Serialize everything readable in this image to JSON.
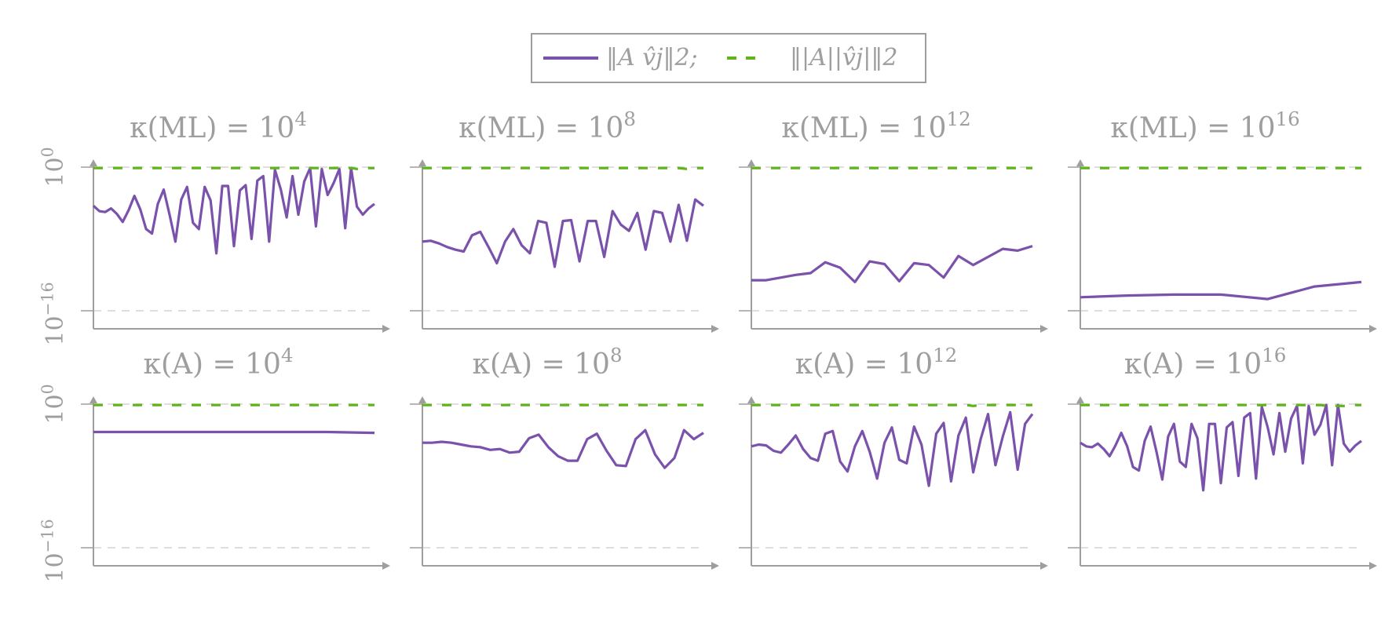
{
  "legend": {
    "items": [
      {
        "label": "‖A v̂j‖2;",
        "color": "#7b52ab",
        "style": "solid"
      },
      {
        "label": "‖|A||v̂j|‖2",
        "color": "#5fb31b",
        "style": "dashed"
      }
    ]
  },
  "y_ticks": {
    "top": "10",
    "top_exp": "0",
    "bottom": "10",
    "bottom_exp": "−16"
  },
  "colors": {
    "axis": "#9e9e9e",
    "grid": "#d4d4d4",
    "series_solid": "#7b52ab",
    "series_dashed": "#5fb31b"
  },
  "chart_data": [
    {
      "type": "line",
      "title_base": "κ(ML) = 10",
      "title_exp": "4",
      "log_scale": true,
      "ylim": [
        -18,
        0.2
      ],
      "grid_lines": [
        0,
        -16
      ],
      "series": [
        {
          "values": [
            -4.3,
            -4.9,
            -5.0,
            -4.6,
            -5.2,
            -6.1,
            -4.8,
            -3.2,
            -4.7,
            -6.9,
            -7.4,
            -4.1,
            -2.5,
            -5.3,
            -8.3,
            -3.6,
            -2.2,
            -6.2,
            -6.9,
            -2.2,
            -3.7,
            -9.6,
            -2.1,
            -2.1,
            -8.8,
            -2.6,
            -2.0,
            -8.0,
            -1.5,
            -1.0,
            -8.3,
            -0.3,
            -2.5,
            -5.6,
            -1.0,
            -5.3,
            -1.6,
            -0.1,
            -6.6,
            -0.2,
            -3.1,
            -1.8,
            -0.2,
            -6.8,
            -0.1,
            -4.4,
            -5.3,
            -4.6,
            -4.1
          ]
        },
        {
          "values": [
            -0.1,
            -0.1,
            -0.1,
            -0.1,
            -0.1,
            -0.1,
            -0.1,
            -0.1,
            -0.1,
            -0.1,
            -0.1,
            -0.1,
            -0.1,
            -0.1,
            -0.1,
            -0.1,
            -0.1,
            -0.1,
            -0.1,
            -0.1,
            -0.1,
            -0.1,
            -0.1,
            -0.1,
            -0.1,
            -0.1,
            -0.1,
            -0.1,
            -0.1,
            -0.1,
            -0.1,
            -0.1,
            -0.1,
            -0.1,
            -0.1,
            -0.1,
            -0.1,
            -0.1,
            -0.1,
            -0.1,
            -0.1,
            -0.1,
            -0.1,
            -0.1,
            -0.1,
            -0.2,
            -0.1,
            -0.1,
            -0.1
          ]
        }
      ]
    },
    {
      "type": "line",
      "title_base": "κ(ML) = 10",
      "title_exp": "8",
      "log_scale": true,
      "ylim": [
        -18,
        0.2
      ],
      "grid_lines": [
        0,
        -16
      ],
      "series": [
        {
          "values": [
            -8.3,
            -8.2,
            -8.5,
            -8.9,
            -9.2,
            -9.4,
            -7.6,
            -7.2,
            -8.9,
            -10.7,
            -8.3,
            -6.9,
            -8.7,
            -9.6,
            -6.0,
            -6.2,
            -11.1,
            -6.0,
            -5.9,
            -10.5,
            -6.0,
            -6.0,
            -10.0,
            -4.9,
            -6.4,
            -7.1,
            -5.1,
            -9.2,
            -4.9,
            -5.1,
            -8.3,
            -4.2,
            -8.2,
            -3.6,
            -4.3
          ]
        },
        {
          "values": [
            -0.1,
            -0.1,
            -0.1,
            -0.1,
            -0.1,
            -0.1,
            -0.1,
            -0.1,
            -0.1,
            -0.1,
            -0.1,
            -0.1,
            -0.1,
            -0.1,
            -0.1,
            -0.1,
            -0.1,
            -0.1,
            -0.1,
            -0.1,
            -0.1,
            -0.1,
            -0.1,
            -0.1,
            -0.1,
            -0.1,
            -0.1,
            -0.1,
            -0.1,
            -0.1,
            -0.1,
            -0.1,
            -0.2,
            -0.1,
            -0.1
          ]
        }
      ]
    },
    {
      "type": "line",
      "title_base": "κ(ML) = 10",
      "title_exp": "12",
      "log_scale": true,
      "ylim": [
        -18,
        0.2
      ],
      "grid_lines": [
        0,
        -16
      ],
      "series": [
        {
          "values": [
            -12.6,
            -12.6,
            -12.3,
            -12.0,
            -11.8,
            -10.6,
            -11.2,
            -12.8,
            -10.5,
            -10.8,
            -12.7,
            -10.7,
            -10.9,
            -12.3,
            -9.9,
            -10.9,
            -10.0,
            -9.1,
            -9.3,
            -8.8
          ]
        },
        {
          "values": [
            -0.1,
            -0.1,
            -0.1,
            -0.1,
            -0.1,
            -0.1,
            -0.1,
            -0.1,
            -0.1,
            -0.1,
            -0.1,
            -0.1,
            -0.1,
            -0.1,
            -0.1,
            -0.1,
            -0.1,
            -0.1,
            -0.1,
            -0.1
          ]
        }
      ]
    },
    {
      "type": "line",
      "title_base": "κ(ML) = 10",
      "title_exp": "16",
      "log_scale": true,
      "ylim": [
        -18,
        0.2
      ],
      "grid_lines": [
        0,
        -16
      ],
      "series": [
        {
          "values": [
            -14.5,
            -14.3,
            -14.2,
            -14.2,
            -14.7,
            -13.3,
            -12.8
          ]
        },
        {
          "values": [
            -0.1,
            -0.1,
            -0.1,
            -0.1,
            -0.1,
            -0.1,
            -0.1
          ]
        }
      ]
    },
    {
      "type": "line",
      "title_base": "κ(A) = 10",
      "title_exp": "4",
      "log_scale": true,
      "ylim": [
        -18,
        0.2
      ],
      "grid_lines": [
        0,
        -16
      ],
      "series": [
        {
          "values": [
            -3.1,
            -3.1,
            -3.1,
            -3.1,
            -3.1,
            -3.1,
            -3.2
          ]
        },
        {
          "values": [
            -0.1,
            -0.1,
            -0.1,
            -0.1,
            -0.1,
            -0.1,
            -0.1
          ]
        }
      ]
    },
    {
      "type": "line",
      "title_base": "κ(A) = 10",
      "title_exp": "8",
      "log_scale": true,
      "ylim": [
        -18,
        0.2
      ],
      "grid_lines": [
        0,
        -16
      ],
      "series": [
        {
          "values": [
            -4.3,
            -4.3,
            -4.2,
            -4.3,
            -4.5,
            -4.7,
            -4.8,
            -5.1,
            -5.0,
            -5.4,
            -5.3,
            -3.8,
            -3.4,
            -4.8,
            -5.8,
            -6.3,
            -6.3,
            -3.9,
            -3.3,
            -5.2,
            -6.8,
            -6.9,
            -3.9,
            -2.9,
            -5.6,
            -7.1,
            -6.0,
            -2.9,
            -3.9,
            -3.2
          ]
        },
        {
          "values": [
            -0.1,
            -0.1,
            -0.1,
            -0.1,
            -0.1,
            -0.1,
            -0.1,
            -0.1,
            -0.1,
            -0.1,
            -0.1,
            -0.1,
            -0.1,
            -0.1,
            -0.1,
            -0.1,
            -0.1,
            -0.1,
            -0.1,
            -0.1,
            -0.1,
            -0.1,
            -0.1,
            -0.1,
            -0.1,
            -0.1,
            -0.1,
            -0.1,
            -0.1,
            -0.1
          ]
        }
      ]
    },
    {
      "type": "line",
      "title_base": "κ(A) = 10",
      "title_exp": "12",
      "log_scale": true,
      "ylim": [
        -18,
        0.2
      ],
      "grid_lines": [
        0,
        -16
      ],
      "series": [
        {
          "values": [
            -4.7,
            -4.5,
            -4.6,
            -5.2,
            -5.4,
            -4.5,
            -3.5,
            -5.0,
            -6.0,
            -6.3,
            -3.3,
            -3.0,
            -6.4,
            -7.5,
            -4.7,
            -3.0,
            -5.3,
            -8.3,
            -4.3,
            -2.6,
            -6.2,
            -6.6,
            -2.5,
            -4.5,
            -9.1,
            -3.3,
            -2.1,
            -8.6,
            -3.5,
            -1.5,
            -7.6,
            -3.9,
            -1.1,
            -6.8,
            -3.6,
            -0.9,
            -7.3,
            -2.2,
            -1.1
          ]
        },
        {
          "values": [
            -0.1,
            -0.1,
            -0.1,
            -0.1,
            -0.1,
            -0.1,
            -0.1,
            -0.1,
            -0.1,
            -0.1,
            -0.1,
            -0.1,
            -0.1,
            -0.1,
            -0.1,
            -0.1,
            -0.1,
            -0.1,
            -0.1,
            -0.1,
            -0.1,
            -0.1,
            -0.1,
            -0.1,
            -0.1,
            -0.1,
            -0.1,
            -0.1,
            -0.1,
            -0.1,
            -0.2,
            -0.1,
            -0.1,
            -0.1,
            -0.1,
            -0.1,
            -0.1,
            -0.1,
            -0.1
          ]
        }
      ]
    },
    {
      "type": "line",
      "title_base": "κ(A) = 10",
      "title_exp": "16",
      "log_scale": true,
      "ylim": [
        -18,
        0.2
      ],
      "grid_lines": [
        0,
        -16
      ],
      "series": [
        {
          "values": [
            -4.3,
            -4.7,
            -4.8,
            -4.4,
            -5.0,
            -5.8,
            -4.6,
            -3.2,
            -4.7,
            -7.0,
            -7.4,
            -4.1,
            -2.5,
            -5.3,
            -8.4,
            -3.6,
            -2.2,
            -6.4,
            -7.0,
            -2.2,
            -3.8,
            -9.6,
            -2.2,
            -2.2,
            -8.8,
            -2.6,
            -2.0,
            -8.0,
            -1.5,
            -1.0,
            -8.3,
            -0.3,
            -2.6,
            -5.6,
            -1.0,
            -5.3,
            -1.6,
            -0.2,
            -6.6,
            -0.2,
            -3.4,
            -2.3,
            -0.1,
            -6.8,
            -0.1,
            -4.4,
            -5.3,
            -4.6,
            -4.1
          ]
        },
        {
          "values": [
            -0.1,
            -0.1,
            -0.1,
            -0.1,
            -0.1,
            -0.1,
            -0.1,
            -0.1,
            -0.1,
            -0.1,
            -0.1,
            -0.1,
            -0.1,
            -0.1,
            -0.1,
            -0.1,
            -0.1,
            -0.1,
            -0.1,
            -0.1,
            -0.1,
            -0.1,
            -0.1,
            -0.1,
            -0.1,
            -0.1,
            -0.1,
            -0.1,
            -0.1,
            -0.1,
            -0.1,
            -0.1,
            -0.1,
            -0.1,
            -0.1,
            -0.1,
            -0.1,
            -0.1,
            -0.1,
            -0.1,
            -0.1,
            -0.1,
            -0.2,
            -0.2,
            -0.2,
            -0.2,
            -0.1,
            -0.1,
            -0.1
          ]
        }
      ]
    }
  ]
}
